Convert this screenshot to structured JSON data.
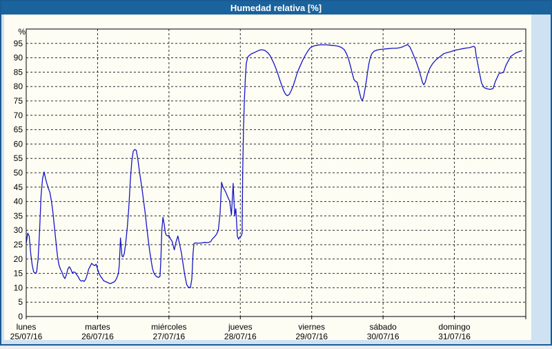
{
  "window": {
    "title": "Humedad relativa [%]"
  },
  "colors": {
    "titlebar_bg": "#1a639c",
    "window_border": "#1a5a94",
    "frame_bg": "#cfe2f2",
    "panel_bg": "#fdfdf4",
    "line": "#1414c8",
    "grid": "#2a2a2a",
    "text": "#000000",
    "title_text": "#ffffff"
  },
  "chart_data": {
    "type": "line",
    "title": "Humedad relativa [%]",
    "ylabel": "%",
    "grid": "dashed",
    "legend_position": "none",
    "y_axis": {
      "label": "%",
      "min": 0,
      "max": 100,
      "tick_min": 0,
      "tick_max": 95,
      "tick_step": 5
    },
    "x_axis": {
      "hours_total": 168,
      "days": [
        {
          "name": "lunes",
          "date": "25/07/16"
        },
        {
          "name": "martes",
          "date": "26/07/16"
        },
        {
          "name": "miércoles",
          "date": "27/07/16"
        },
        {
          "name": "jueves",
          "date": "28/07/16"
        },
        {
          "name": "viernes",
          "date": "29/07/16"
        },
        {
          "name": "sábado",
          "date": "30/07/16"
        },
        {
          "name": "domingo",
          "date": "31/07/16"
        }
      ]
    },
    "series": [
      {
        "name": "Humedad relativa",
        "color": "#1414c8",
        "points": [
          [
            0,
            25.5
          ],
          [
            0.5,
            29
          ],
          [
            1,
            28
          ],
          [
            1.5,
            22
          ],
          [
            2,
            18
          ],
          [
            2.5,
            15.5
          ],
          [
            3,
            15
          ],
          [
            3.5,
            15.5
          ],
          [
            4,
            20
          ],
          [
            4.5,
            30
          ],
          [
            5,
            42
          ],
          [
            5.5,
            48
          ],
          [
            6,
            50.3
          ],
          [
            6.5,
            48
          ],
          [
            7,
            46
          ],
          [
            7.5,
            44.5
          ],
          [
            8,
            43
          ],
          [
            8.5,
            40
          ],
          [
            9,
            36
          ],
          [
            9.5,
            31
          ],
          [
            10,
            26
          ],
          [
            10.5,
            21
          ],
          [
            11,
            18
          ],
          [
            11.5,
            16.5
          ],
          [
            12,
            15.5
          ],
          [
            12.5,
            14
          ],
          [
            13,
            13.2
          ],
          [
            13.5,
            14.5
          ],
          [
            14,
            16.5
          ],
          [
            14.5,
            17.3
          ],
          [
            15,
            16.5
          ],
          [
            15.5,
            15.2
          ],
          [
            16,
            15.5
          ],
          [
            16.5,
            15.3
          ],
          [
            17,
            14.5
          ],
          [
            17.5,
            13.8
          ],
          [
            18,
            12.8
          ],
          [
            18.5,
            12.3
          ],
          [
            19,
            12.5
          ],
          [
            19.5,
            12.2
          ],
          [
            20,
            13
          ],
          [
            20.5,
            14.5
          ],
          [
            21,
            16.5
          ],
          [
            21.5,
            17.5
          ],
          [
            22,
            18.5
          ],
          [
            22.5,
            18
          ],
          [
            23,
            17.7
          ],
          [
            23.5,
            18.2
          ],
          [
            24,
            16.5
          ],
          [
            24.5,
            15
          ],
          [
            25,
            14
          ],
          [
            25.5,
            13.3
          ],
          [
            26,
            12.5
          ],
          [
            26.5,
            12.2
          ],
          [
            27,
            12
          ],
          [
            27.5,
            11.8
          ],
          [
            28,
            11.5
          ],
          [
            28.5,
            11.5
          ],
          [
            29,
            11.8
          ],
          [
            29.5,
            12
          ],
          [
            30,
            12.5
          ],
          [
            30.5,
            13.5
          ],
          [
            31,
            15
          ],
          [
            31.3,
            18
          ],
          [
            31.7,
            27.3
          ],
          [
            32.2,
            21
          ],
          [
            32.6,
            20.8
          ],
          [
            33,
            22
          ],
          [
            33.5,
            26
          ],
          [
            34,
            31
          ],
          [
            34.5,
            38
          ],
          [
            35,
            47
          ],
          [
            35.5,
            54
          ],
          [
            36,
            57.5
          ],
          [
            36.5,
            58.1
          ],
          [
            37,
            57.8
          ],
          [
            37.5,
            55
          ],
          [
            38,
            51
          ],
          [
            38.5,
            47.5
          ],
          [
            39,
            44
          ],
          [
            39.5,
            40
          ],
          [
            40,
            36
          ],
          [
            40.5,
            31.5
          ],
          [
            41,
            27
          ],
          [
            41.5,
            23
          ],
          [
            42,
            19.5
          ],
          [
            42.5,
            16.5
          ],
          [
            43,
            15
          ],
          [
            43.5,
            14.2
          ],
          [
            44,
            13.8
          ],
          [
            44.5,
            13.6
          ],
          [
            45,
            14
          ],
          [
            45.3,
            20
          ],
          [
            45.6,
            30
          ],
          [
            46,
            34.5
          ],
          [
            46.4,
            32
          ],
          [
            46.8,
            29
          ],
          [
            47.2,
            28.2
          ],
          [
            47.6,
            28
          ],
          [
            48,
            28.2
          ],
          [
            48.5,
            27
          ],
          [
            49,
            26.3
          ],
          [
            49.8,
            23.2
          ],
          [
            50.4,
            26
          ],
          [
            51,
            28
          ],
          [
            51.6,
            25
          ],
          [
            52.2,
            22
          ],
          [
            52.8,
            18
          ],
          [
            53.4,
            14
          ],
          [
            54,
            11
          ],
          [
            54.6,
            10.2
          ],
          [
            55.2,
            10
          ],
          [
            55.7,
            13
          ],
          [
            56.1,
            22
          ],
          [
            56.4,
            25.4
          ],
          [
            57,
            25.6
          ],
          [
            58,
            25.5
          ],
          [
            59,
            25.6
          ],
          [
            60,
            25.8
          ],
          [
            61,
            25.7
          ],
          [
            62,
            26
          ],
          [
            62.6,
            27
          ],
          [
            63.2,
            27.6
          ],
          [
            64,
            28.6
          ],
          [
            64.6,
            30
          ],
          [
            65.2,
            36
          ],
          [
            65.7,
            46.7
          ],
          [
            66.2,
            45
          ],
          [
            67,
            43.5
          ],
          [
            67.8,
            41.5
          ],
          [
            68.4,
            40.2
          ],
          [
            69,
            35.3
          ],
          [
            69.6,
            46.3
          ],
          [
            70.1,
            35.2
          ],
          [
            70.5,
            37.5
          ],
          [
            71,
            28
          ],
          [
            71.4,
            26.9
          ],
          [
            71.9,
            27.8
          ],
          [
            72.3,
            28
          ],
          [
            72.6,
            29
          ],
          [
            72.8,
            50
          ],
          [
            73.1,
            66
          ],
          [
            73.4,
            76
          ],
          [
            73.7,
            83
          ],
          [
            74,
            88
          ],
          [
            74.5,
            90.3
          ],
          [
            75,
            90.8
          ],
          [
            75.5,
            91.2
          ],
          [
            76,
            91.5
          ],
          [
            76.7,
            91.8
          ],
          [
            77.5,
            92.2
          ],
          [
            78.3,
            92.6
          ],
          [
            79,
            92.8
          ],
          [
            79.8,
            92.7
          ],
          [
            80.5,
            92.4
          ],
          [
            81.2,
            91.8
          ],
          [
            82,
            90.8
          ],
          [
            82.6,
            89.5
          ],
          [
            83.3,
            88
          ],
          [
            84,
            86.2
          ],
          [
            84.7,
            84.2
          ],
          [
            85.3,
            82.2
          ],
          [
            86,
            80.2
          ],
          [
            86.6,
            78.5
          ],
          [
            87.2,
            77.3
          ],
          [
            87.8,
            76.8
          ],
          [
            88.4,
            77.2
          ],
          [
            89,
            78.3
          ],
          [
            89.7,
            80
          ],
          [
            90.4,
            82.2
          ],
          [
            91,
            84.3
          ],
          [
            91.7,
            86.2
          ],
          [
            92.4,
            87.8
          ],
          [
            93,
            89.2
          ],
          [
            93.8,
            90.8
          ],
          [
            94.5,
            92
          ],
          [
            95.3,
            93.2
          ],
          [
            96,
            93.8
          ],
          [
            97,
            94.2
          ],
          [
            98,
            94.4
          ],
          [
            99,
            94.5
          ],
          [
            100,
            94.5
          ],
          [
            101,
            94.5
          ],
          [
            102,
            94.4
          ],
          [
            103,
            94.3
          ],
          [
            104,
            94.2
          ],
          [
            105,
            94
          ],
          [
            106,
            93.6
          ],
          [
            107,
            92.8
          ],
          [
            107.7,
            91.5
          ],
          [
            108.4,
            89.5
          ],
          [
            109,
            87.3
          ],
          [
            109.6,
            84.8
          ],
          [
            110.2,
            82.5
          ],
          [
            110.7,
            81.8
          ],
          [
            111.3,
            81.5
          ],
          [
            112,
            78.2
          ],
          [
            112.6,
            75.8
          ],
          [
            113,
            75.1
          ],
          [
            113.5,
            76.5
          ],
          [
            114,
            79.5
          ],
          [
            114.4,
            82
          ],
          [
            114.8,
            85
          ],
          [
            115.2,
            87.8
          ],
          [
            115.7,
            90
          ],
          [
            116.2,
            91.4
          ],
          [
            117,
            92.3
          ],
          [
            118,
            92.7
          ],
          [
            119,
            92.9
          ],
          [
            120,
            93
          ],
          [
            121,
            93.1
          ],
          [
            122,
            93.2
          ],
          [
            123,
            93.3
          ],
          [
            124,
            93.3
          ],
          [
            125,
            93.4
          ],
          [
            126,
            93.6
          ],
          [
            126.8,
            93.9
          ],
          [
            127.6,
            94.3
          ],
          [
            128.2,
            94.6
          ],
          [
            129,
            93.8
          ],
          [
            129.6,
            92.5
          ],
          [
            130.4,
            90.5
          ],
          [
            131.2,
            88.5
          ],
          [
            132,
            86
          ],
          [
            132.7,
            83.5
          ],
          [
            133.3,
            81.3
          ],
          [
            133.7,
            80.6
          ],
          [
            134.2,
            81.5
          ],
          [
            135,
            84.5
          ],
          [
            135.8,
            86.5
          ],
          [
            136.7,
            88
          ],
          [
            137.8,
            89.3
          ],
          [
            139,
            90.3
          ],
          [
            140.4,
            91.4
          ],
          [
            141.5,
            91.8
          ],
          [
            142.7,
            92.1
          ],
          [
            144,
            92.6
          ],
          [
            145,
            92.8
          ],
          [
            146,
            93
          ],
          [
            147,
            93.2
          ],
          [
            148,
            93.4
          ],
          [
            149,
            93.5
          ],
          [
            149.9,
            93.8
          ],
          [
            150.5,
            94
          ],
          [
            151,
            93.5
          ],
          [
            151.3,
            90.9
          ],
          [
            152.4,
            84.9
          ],
          [
            153.1,
            81.3
          ],
          [
            154,
            79.6
          ],
          [
            155,
            79.2
          ],
          [
            156,
            79
          ],
          [
            157,
            79.3
          ],
          [
            157.8,
            81.8
          ],
          [
            159,
            84.5
          ],
          [
            160.5,
            84.9
          ],
          [
            161.3,
            87.3
          ],
          [
            162.9,
            90.4
          ],
          [
            164.5,
            91.6
          ],
          [
            165.7,
            92.1
          ],
          [
            166.8,
            92.5
          ]
        ]
      }
    ]
  }
}
